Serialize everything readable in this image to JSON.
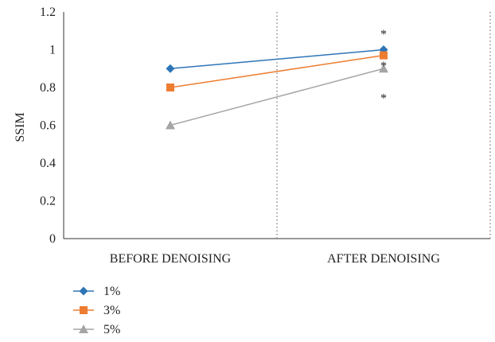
{
  "chart_data": {
    "type": "line",
    "categories": [
      "BEFORE DENOISING",
      "AFTER DENOISING"
    ],
    "ylabel": "SSIM",
    "xlabel": "",
    "ylim": [
      0,
      1.2
    ],
    "yticks": [
      0,
      0.2,
      0.4,
      0.6,
      0.8,
      1,
      1.2
    ],
    "ytick_labels": [
      "0",
      "0.2",
      "0.4",
      "0.6",
      "0.8",
      "1",
      "1.2"
    ],
    "grid": false,
    "legend_position": "bottom-left",
    "series": [
      {
        "name": "1%",
        "values": [
          0.9,
          1.0
        ],
        "color": "#2e75b6",
        "marker": "diamond"
      },
      {
        "name": "3%",
        "values": [
          0.8,
          0.97
        ],
        "color": "#ed7d31",
        "marker": "square"
      },
      {
        "name": "5%",
        "values": [
          0.6,
          0.9
        ],
        "color": "#a5a5a5",
        "marker": "triangle"
      }
    ],
    "annotations": [
      {
        "text": "*",
        "category": "AFTER DENOISING",
        "y": 1.1
      },
      {
        "text": "*",
        "category": "AFTER DENOISING",
        "y": 0.93
      },
      {
        "text": "*",
        "category": "AFTER DENOISING",
        "y": 0.76
      }
    ]
  }
}
